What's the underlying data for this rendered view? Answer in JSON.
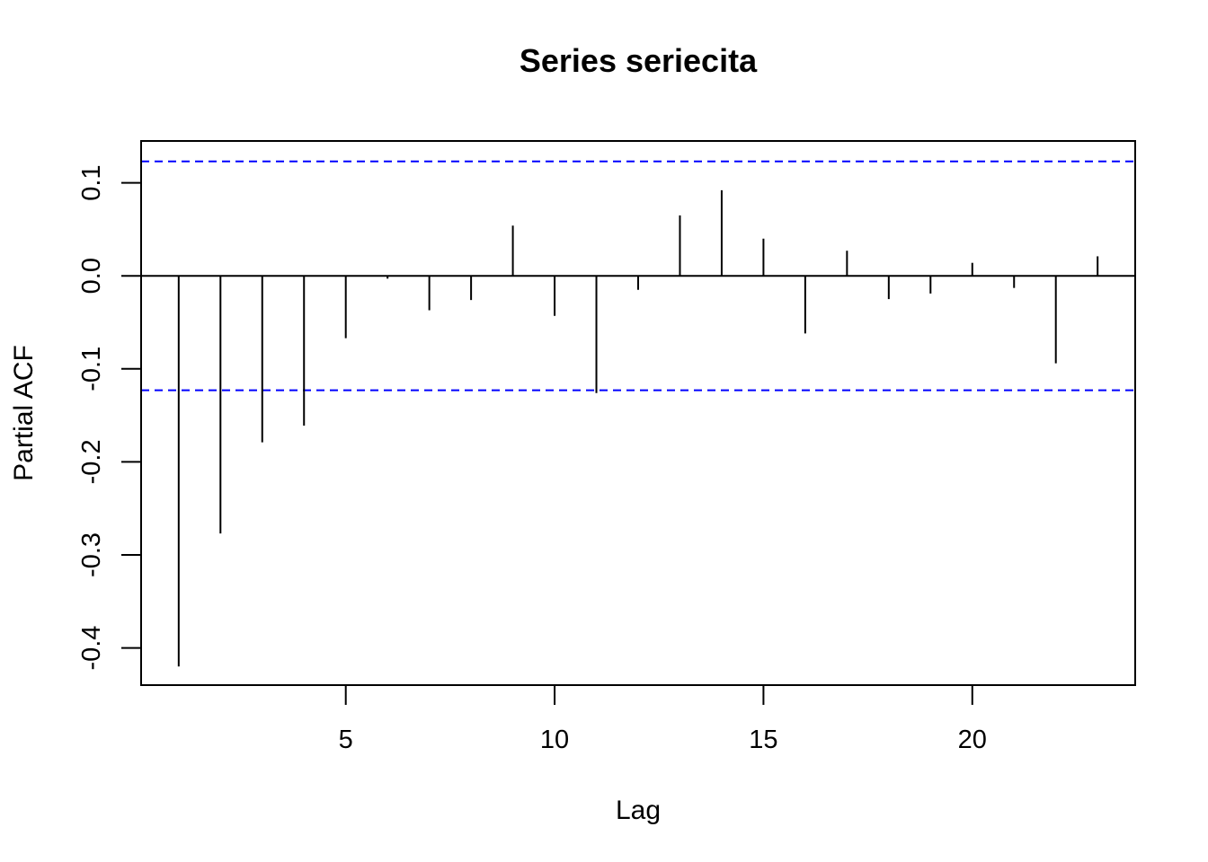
{
  "chart_data": {
    "type": "bar",
    "title": "Series  seriecita",
    "xlabel": "Lag",
    "ylabel": "Partial ACF",
    "xlim": [
      0.1,
      23.9
    ],
    "ylim": [
      -0.44,
      0.145
    ],
    "x_ticks": [
      5,
      10,
      15,
      20
    ],
    "y_ticks": [
      0.1,
      0.0,
      -0.1,
      -0.2,
      -0.3,
      -0.4
    ],
    "x_tick_labels": [
      "5",
      "10",
      "15",
      "20"
    ],
    "y_tick_labels": [
      "0.1",
      "0.0",
      "-0.1",
      "-0.2",
      "-0.3",
      "-0.4"
    ],
    "lags": [
      1,
      2,
      3,
      4,
      5,
      6,
      7,
      8,
      9,
      10,
      11,
      12,
      13,
      14,
      15,
      16,
      17,
      18,
      19,
      20,
      21,
      22,
      23
    ],
    "values": [
      -0.42,
      -0.277,
      -0.179,
      -0.161,
      -0.067,
      -0.003,
      -0.037,
      -0.026,
      0.054,
      -0.043,
      -0.126,
      -0.015,
      0.065,
      0.092,
      0.04,
      -0.062,
      0.027,
      -0.025,
      -0.019,
      0.014,
      -0.013,
      -0.094,
      0.021
    ],
    "confidence_limits": [
      0.123,
      -0.123
    ],
    "confidence_color": "#0000ff",
    "bar_color": "#000000",
    "grid": false,
    "legend": "none"
  }
}
